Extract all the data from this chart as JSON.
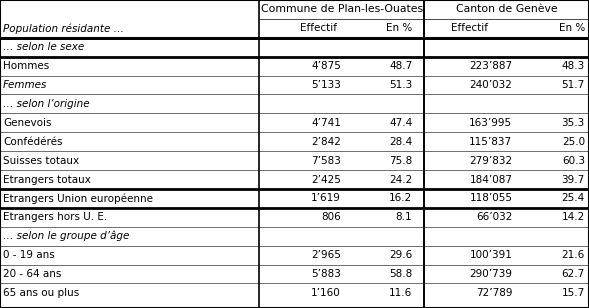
{
  "col_headers_row1": [
    "",
    "Commune de Plan-les-Ouates",
    "",
    "Canton de Genève",
    ""
  ],
  "col_headers_row2": [
    "Population résidante …",
    "Effectif",
    "En %",
    "Effectif",
    "En %"
  ],
  "rows": [
    {
      "label": "… selon le sexe",
      "vals": [
        "",
        "",
        "",
        ""
      ],
      "italic": true,
      "section_header": true
    },
    {
      "label": "Hommes",
      "vals": [
        "4’875",
        "48.7",
        "223’887",
        "48.3"
      ],
      "italic": false,
      "section_header": false
    },
    {
      "label": "Femmes",
      "vals": [
        "5’133",
        "51.3",
        "240’032",
        "51.7"
      ],
      "italic": true,
      "section_header": false
    },
    {
      "label": "… selon l’origine",
      "vals": [
        "",
        "",
        "",
        ""
      ],
      "italic": true,
      "section_header": true
    },
    {
      "label": "Genevois",
      "vals": [
        "4’741",
        "47.4",
        "163’995",
        "35.3"
      ],
      "italic": false,
      "section_header": false
    },
    {
      "label": "Confédérés",
      "vals": [
        "2’842",
        "28.4",
        "115’837",
        "25.0"
      ],
      "italic": false,
      "section_header": false
    },
    {
      "label": "Suisses totaux",
      "vals": [
        "7’583",
        "75.8",
        "279’832",
        "60.3"
      ],
      "italic": false,
      "section_header": false
    },
    {
      "label": "Etrangers totaux",
      "vals": [
        "2’425",
        "24.2",
        "184’087",
        "39.7"
      ],
      "italic": false,
      "section_header": false
    },
    {
      "label": "Etrangers Union européenne",
      "vals": [
        "1’619",
        "16.2",
        "118’055",
        "25.4"
      ],
      "italic": false,
      "section_header": false
    },
    {
      "label": "Etrangers hors U. E.",
      "vals": [
        "806",
        "8.1",
        "66’032",
        "14.2"
      ],
      "italic": false,
      "section_header": false
    },
    {
      "label": "… selon le groupe d’âge",
      "vals": [
        "",
        "",
        "",
        ""
      ],
      "italic": true,
      "section_header": true
    },
    {
      "label": "0 - 19 ans",
      "vals": [
        "2’965",
        "29.6",
        "100’391",
        "21.6"
      ],
      "italic": false,
      "section_header": false
    },
    {
      "label": "20 - 64 ans",
      "vals": [
        "5’883",
        "58.8",
        "290’739",
        "62.7"
      ],
      "italic": false,
      "section_header": false
    },
    {
      "label": "65 ans ou plus",
      "vals": [
        "1’160",
        "11.6",
        "72’789",
        "15.7"
      ],
      "italic": false,
      "section_header": false
    }
  ],
  "thick_separators": [
    2,
    3,
    10,
    11
  ],
  "background_color": "#ffffff",
  "font_size": 7.5,
  "header_font_size": 7.8
}
